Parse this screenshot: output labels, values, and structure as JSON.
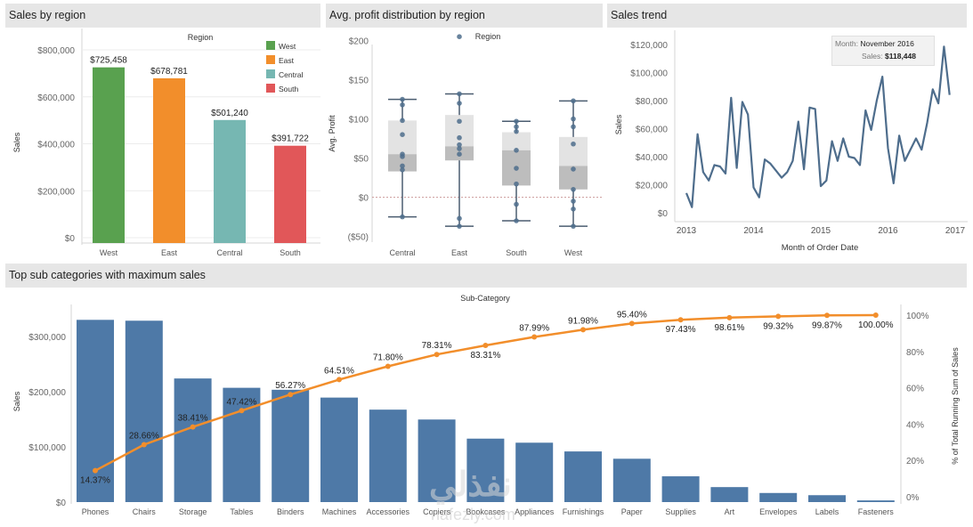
{
  "panels": {
    "sales_by_region": "Sales by region",
    "avg_profit": "Avg. profit distribution by region",
    "sales_trend": "Sales trend",
    "top_sub": "Top sub categories with maximum sales"
  },
  "tooltip": {
    "month_key": "Month:",
    "month_val": "November 2016",
    "sales_key": "Sales:",
    "sales_val": "$118,448"
  },
  "watermark": {
    "arabic": "نفذلي",
    "latin": "nafezly.com"
  },
  "colors": {
    "west": "#59a14f",
    "east": "#f28e2b",
    "central": "#76b7b2",
    "south": "#e15759",
    "blue": "#4e79a7",
    "orange": "#f28e2b",
    "line": "#4e6d8c"
  },
  "chart_data": [
    {
      "type": "bar",
      "title": "Sales by region",
      "header": "Region",
      "ylabel": "Sales",
      "categories": [
        "West",
        "East",
        "Central",
        "South"
      ],
      "values": [
        725458,
        678781,
        501240,
        391722
      ],
      "value_labels": [
        "$725,458",
        "$678,781",
        "$501,240",
        "$391,722"
      ],
      "yticks": [
        0,
        200000,
        400000,
        600000,
        800000
      ],
      "ytick_labels": [
        "$0",
        "$200,000",
        "$400,000",
        "$600,000",
        "$800,000"
      ],
      "ylim": [
        0,
        800000
      ],
      "legend": [
        "West",
        "East",
        "Central",
        "South"
      ],
      "legend_position": "top-right"
    },
    {
      "type": "box",
      "title": "Avg. profit distribution by region",
      "header": "Region",
      "ylabel": "Avg. Profit",
      "categories": [
        "Central",
        "East",
        "South",
        "West"
      ],
      "boxes": [
        {
          "min": -25,
          "q1": 33,
          "median": 55,
          "q3": 98,
          "max": 125,
          "points": [
            125,
            118,
            98,
            80,
            55,
            52,
            40,
            35,
            -25
          ]
        },
        {
          "min": -37,
          "q1": 47,
          "median": 65,
          "q3": 105,
          "max": 132,
          "points": [
            205,
            132,
            120,
            97,
            76,
            67,
            62,
            55,
            -27,
            -37
          ]
        },
        {
          "min": -30,
          "q1": 15,
          "median": 60,
          "q3": 83,
          "max": 97,
          "points": [
            97,
            90,
            84,
            60,
            37,
            17,
            -9,
            -30
          ]
        },
        {
          "min": -37,
          "q1": 10,
          "median": 40,
          "q3": 77,
          "max": 123,
          "points": [
            123,
            100,
            90,
            68,
            36,
            10,
            -5,
            -15,
            -37
          ]
        }
      ],
      "yticks": [
        -50,
        0,
        50,
        100,
        150,
        200
      ],
      "ytick_labels": [
        "($50)",
        "$0",
        "$50",
        "$100",
        "$150",
        "$200"
      ],
      "ylim": [
        -55,
        220
      ]
    },
    {
      "type": "line",
      "title": "Sales trend",
      "xlabel": "Month of Order Date",
      "ylabel": "Sales",
      "x_labels": [
        "2013",
        "2014",
        "2015",
        "2016",
        "2017"
      ],
      "values": [
        14000,
        4000,
        56000,
        29000,
        23000,
        34000,
        33000,
        28000,
        82000,
        32000,
        79000,
        70000,
        18000,
        11000,
        38000,
        35000,
        30000,
        25000,
        29000,
        37000,
        65000,
        31000,
        75000,
        74000,
        19000,
        23000,
        51000,
        37000,
        53000,
        40000,
        39000,
        34000,
        73000,
        59000,
        80000,
        97000,
        46000,
        21000,
        55000,
        37000,
        45000,
        53000,
        45000,
        64000,
        88000,
        78000,
        118448,
        84000
      ],
      "yticks": [
        0,
        20000,
        40000,
        60000,
        80000,
        100000,
        120000
      ],
      "ytick_labels": [
        "$0",
        "$20,000",
        "$40,000",
        "$60,000",
        "$80,000",
        "$100,000",
        "$120,000"
      ],
      "ylim": [
        0,
        125000
      ]
    },
    {
      "type": "bar+line",
      "title": "Top sub categories with maximum sales",
      "header": "Sub-Category",
      "ylabel": "Sales",
      "y2label": "% of Total Running Sum of Sales",
      "categories": [
        "Phones",
        "Chairs",
        "Storage",
        "Tables",
        "Binders",
        "Machines",
        "Accessories",
        "Copiers",
        "Bookcases",
        "Appliances",
        "Furnishings",
        "Paper",
        "Supplies",
        "Art",
        "Envelopes",
        "Labels",
        "Fasteners"
      ],
      "values": [
        330007,
        328449,
        223844,
        206966,
        203413,
        189239,
        167380,
        149528,
        114880,
        107532,
        91705,
        78479,
        46674,
        27119,
        16476,
        12486,
        3024
      ],
      "cumulative_pct": [
        14.37,
        28.66,
        38.41,
        47.42,
        56.27,
        64.51,
        71.8,
        78.31,
        83.31,
        87.99,
        91.98,
        95.4,
        97.43,
        98.61,
        99.32,
        99.87,
        100.0
      ],
      "pct_labels": [
        "14.37%",
        "28.66%",
        "38.41%",
        "47.42%",
        "56.27%",
        "64.51%",
        "71.80%",
        "78.31%",
        "83.31%",
        "87.99%",
        "91.98%",
        "95.40%",
        "97.43%",
        "98.61%",
        "99.32%",
        "99.87%",
        "100.00%"
      ],
      "yticks": [
        0,
        100000,
        200000,
        300000
      ],
      "ytick_labels": [
        "$0",
        "$100,000",
        "$200,000",
        "$300,000"
      ],
      "ylim": [
        0,
        345000
      ],
      "y2ticks": [
        0,
        20,
        40,
        60,
        80,
        100
      ],
      "y2tick_labels": [
        "0%",
        "20%",
        "40%",
        "60%",
        "80%",
        "100%"
      ]
    }
  ]
}
